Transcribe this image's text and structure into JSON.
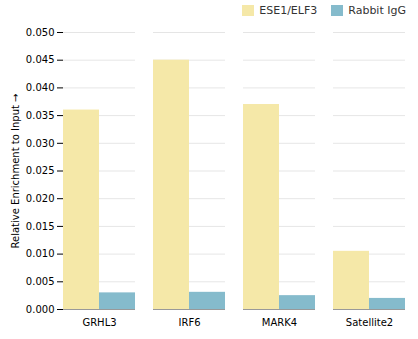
{
  "chart_data": {
    "type": "bar",
    "categories": [
      "GRHL3",
      "IRF6",
      "MARK4",
      "Satellite2"
    ],
    "series": [
      {
        "name": "ESE1/ELF3",
        "color": "#F5E8A8",
        "values": [
          0.036,
          0.045,
          0.037,
          0.0105
        ]
      },
      {
        "name": "Rabbit IgG",
        "color": "#85BBCC",
        "values": [
          0.003,
          0.0031,
          0.0025,
          0.002
        ]
      }
    ],
    "ylabel": "Relative Enrichment to Input",
    "ylim": [
      0,
      0.05
    ],
    "yticks": [
      {
        "value": 0.0,
        "label": "0.000"
      },
      {
        "value": 0.005,
        "label": "0.005"
      },
      {
        "value": 0.01,
        "label": "0.010"
      },
      {
        "value": 0.015,
        "label": "0.015"
      },
      {
        "value": 0.02,
        "label": "0.020"
      },
      {
        "value": 0.025,
        "label": "0.025"
      },
      {
        "value": 0.03,
        "label": "0.030"
      },
      {
        "value": 0.035,
        "label": "0.035"
      },
      {
        "value": 0.04,
        "label": "0.040"
      },
      {
        "value": 0.045,
        "label": "0.045"
      },
      {
        "value": 0.05,
        "label": "0.050"
      }
    ],
    "grid": true,
    "legend": "upper right"
  }
}
